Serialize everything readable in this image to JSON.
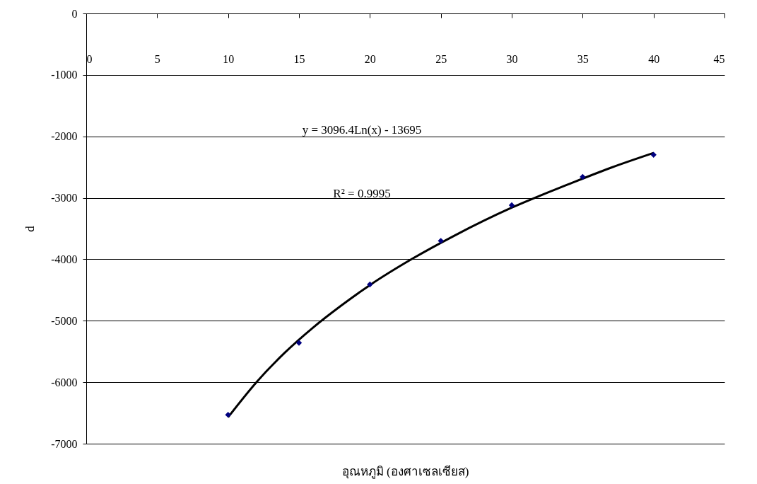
{
  "chart_data": {
    "type": "scatter",
    "xlabel": "อุณหภูมิ (องศาเซลเซียส)",
    "ylabel": "d",
    "x": [
      10,
      15,
      20,
      25,
      30,
      35,
      40
    ],
    "series": [
      {
        "color": "#000080",
        "marker": "diamond",
        "values": [
          -6530,
          -5360,
          -4410,
          -3700,
          -3120,
          -2660,
          -2300
        ]
      },
      {
        "type": "line",
        "color": "#000000",
        "marker": "none",
        "line_style": "solid",
        "x": [
          10,
          12,
          14,
          16,
          18,
          20,
          23,
          26,
          30,
          34,
          37,
          40
        ],
        "values": [
          -6570,
          -6000,
          -5520,
          -5110,
          -4750,
          -4420,
          -3990,
          -3610,
          -3160,
          -2780,
          -2510,
          -2270
        ]
      }
    ],
    "annotations": [
      "y = 3096.4Ln(x) - 13695",
      "R² = 0.9995"
    ],
    "xlim": [
      0,
      45
    ],
    "xticks": [
      0,
      5,
      10,
      15,
      20,
      25,
      30,
      35,
      40,
      45
    ],
    "ylim": [
      -7000,
      0
    ],
    "yticks": [
      -7000,
      -6000,
      -5000,
      -4000,
      -3000,
      -2000,
      -1000,
      0
    ],
    "grid": "y",
    "legend": false
  }
}
